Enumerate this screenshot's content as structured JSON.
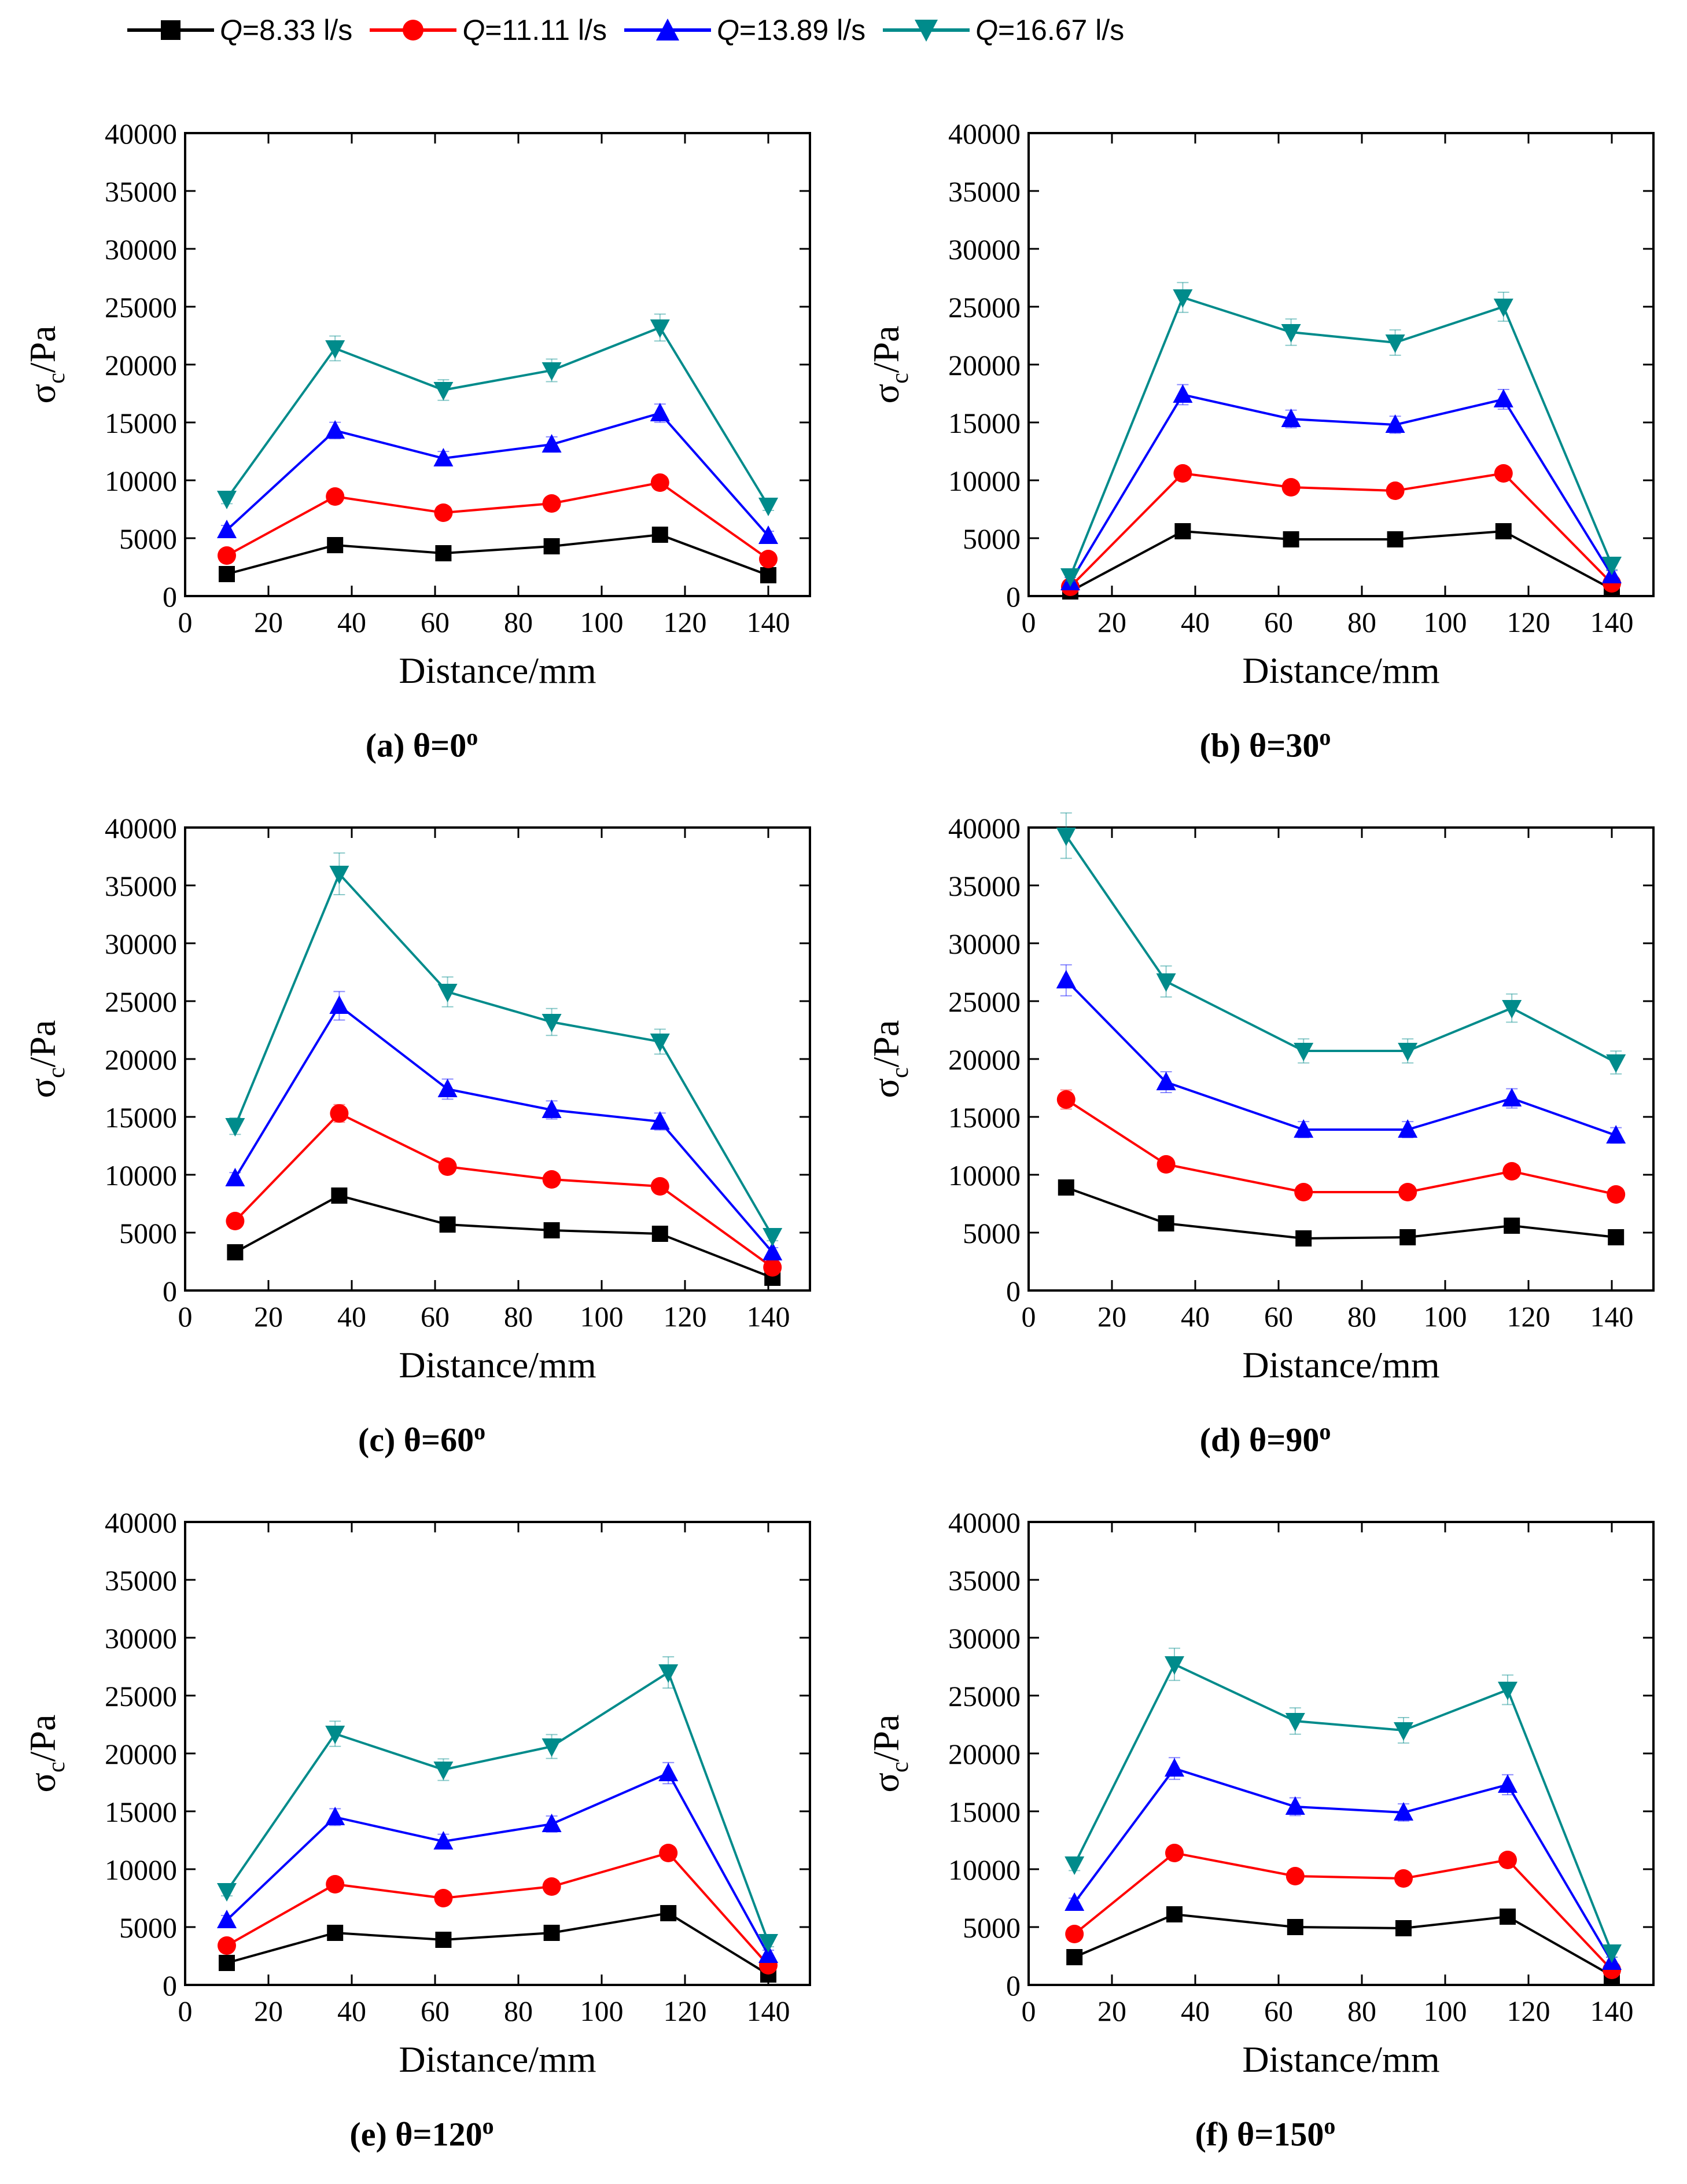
{
  "figure": {
    "legend": [
      {
        "q_symbol": "Q",
        "label": "=8.33 l/s",
        "color": "#000000",
        "marker": "square"
      },
      {
        "q_symbol": "Q",
        "label": "=11.11 l/s",
        "color": "#ff0000",
        "marker": "circle"
      },
      {
        "q_symbol": "Q",
        "label": "=13.89 l/s",
        "color": "#0000ff",
        "marker": "triangle-up"
      },
      {
        "q_symbol": "Q",
        "label": "=16.67 l/s",
        "color": "#008b8b",
        "marker": "triangle-down"
      }
    ],
    "panels": [
      {
        "caption": "(a) θ=0",
        "degree_sign": "o"
      },
      {
        "caption": "(b) θ=30",
        "degree_sign": "o"
      },
      {
        "caption": "(c) θ=60",
        "degree_sign": "o"
      },
      {
        "caption": "(d) θ=90",
        "degree_sign": "o"
      },
      {
        "caption": "(e) θ=120",
        "degree_sign": "o"
      },
      {
        "caption": "(f) θ=150",
        "degree_sign": "o"
      }
    ]
  },
  "chart_data": [
    {
      "type": "line",
      "title": "(a) θ=0°",
      "xlabel": "Distance/mm",
      "ylabel_main": "σ",
      "ylabel_sub": "c",
      "ylabel_rest": "/Pa",
      "xlim": [
        0,
        150
      ],
      "ylim": [
        0,
        40000
      ],
      "xticks": [
        0,
        20,
        40,
        60,
        80,
        100,
        120,
        140
      ],
      "yticks": [
        0,
        5000,
        10000,
        15000,
        20000,
        25000,
        30000,
        35000,
        40000
      ],
      "x": [
        10,
        36,
        62,
        88,
        114,
        140
      ],
      "series": [
        {
          "name": "Q=8.33 l/s",
          "values": [
            1900,
            4400,
            3700,
            4300,
            5300,
            1800
          ]
        },
        {
          "name": "Q=11.11 l/s",
          "values": [
            3500,
            8600,
            7200,
            8000,
            9800,
            3200
          ]
        },
        {
          "name": "Q=13.89 l/s",
          "values": [
            5700,
            14300,
            11900,
            13100,
            15800,
            5200
          ]
        },
        {
          "name": "Q=16.67 l/s",
          "values": [
            8400,
            21400,
            17800,
            19500,
            23200,
            7800
          ]
        }
      ]
    },
    {
      "type": "line",
      "title": "(b) θ=30°",
      "xlabel": "Distance/mm",
      "ylabel_main": "σ",
      "ylabel_sub": "c",
      "ylabel_rest": "/Pa",
      "xlim": [
        0,
        150
      ],
      "ylim": [
        0,
        40000
      ],
      "xticks": [
        0,
        20,
        40,
        60,
        80,
        100,
        120,
        140
      ],
      "yticks": [
        0,
        5000,
        10000,
        15000,
        20000,
        25000,
        30000,
        35000,
        40000
      ],
      "x": [
        10,
        37,
        63,
        88,
        114,
        140
      ],
      "series": [
        {
          "name": "Q=8.33 l/s",
          "values": [
            400,
            5600,
            4900,
            4900,
            5600,
            600
          ]
        },
        {
          "name": "Q=11.11 l/s",
          "values": [
            800,
            10600,
            9400,
            9100,
            10600,
            1100
          ]
        },
        {
          "name": "Q=13.89 l/s",
          "values": [
            1200,
            17400,
            15300,
            14800,
            17000,
            1800
          ]
        },
        {
          "name": "Q=16.67 l/s",
          "values": [
            1700,
            25800,
            22800,
            21900,
            25000,
            2700
          ]
        }
      ]
    },
    {
      "type": "line",
      "title": "(c) θ=60°",
      "xlabel": "Distance/mm",
      "ylabel_main": "σ",
      "ylabel_sub": "c",
      "ylabel_rest": "/Pa",
      "xlim": [
        0,
        150
      ],
      "ylim": [
        0,
        40000
      ],
      "xticks": [
        0,
        20,
        40,
        60,
        80,
        100,
        120,
        140
      ],
      "yticks": [
        0,
        5000,
        10000,
        15000,
        20000,
        25000,
        30000,
        35000,
        40000
      ],
      "x": [
        12,
        37,
        63,
        88,
        114,
        141
      ],
      "series": [
        {
          "name": "Q=8.33 l/s",
          "values": [
            3300,
            8200,
            5700,
            5200,
            4900,
            1100
          ]
        },
        {
          "name": "Q=11.11 l/s",
          "values": [
            6000,
            15300,
            10700,
            9600,
            9000,
            2000
          ]
        },
        {
          "name": "Q=13.89 l/s",
          "values": [
            9700,
            24600,
            17400,
            15600,
            14600,
            3300
          ]
        },
        {
          "name": "Q=16.67 l/s",
          "values": [
            14200,
            36000,
            25800,
            23200,
            21500,
            4700
          ]
        }
      ]
    },
    {
      "type": "line",
      "title": "(d) θ=90°",
      "xlabel": "Distance/mm",
      "ylabel_main": "σ",
      "ylabel_sub": "c",
      "ylabel_rest": "/Pa",
      "xlim": [
        0,
        150
      ],
      "ylim": [
        0,
        40000
      ],
      "xticks": [
        0,
        20,
        40,
        60,
        80,
        100,
        120,
        140
      ],
      "yticks": [
        0,
        5000,
        10000,
        15000,
        20000,
        25000,
        30000,
        35000,
        40000
      ],
      "x": [
        9,
        33,
        66,
        91,
        116,
        141
      ],
      "series": [
        {
          "name": "Q=8.33 l/s",
          "values": [
            8900,
            5800,
            4500,
            4600,
            5600,
            4600
          ]
        },
        {
          "name": "Q=11.11 l/s",
          "values": [
            16500,
            10900,
            8500,
            8500,
            10300,
            8300
          ]
        },
        {
          "name": "Q=13.89 l/s",
          "values": [
            26800,
            18000,
            13900,
            13900,
            16600,
            13400
          ]
        },
        {
          "name": "Q=16.67 l/s",
          "values": [
            39300,
            26700,
            20700,
            20700,
            24400,
            19700
          ]
        }
      ]
    },
    {
      "type": "line",
      "title": "(e) θ=120°",
      "xlabel": "Distance/mm",
      "ylabel_main": "σ",
      "ylabel_sub": "c",
      "ylabel_rest": "/Pa",
      "xlim": [
        0,
        150
      ],
      "ylim": [
        0,
        40000
      ],
      "xticks": [
        0,
        20,
        40,
        60,
        80,
        100,
        120,
        140
      ],
      "yticks": [
        0,
        5000,
        10000,
        15000,
        20000,
        25000,
        30000,
        35000,
        40000
      ],
      "x": [
        10,
        36,
        62,
        88,
        116,
        140
      ],
      "series": [
        {
          "name": "Q=8.33 l/s",
          "values": [
            1900,
            4500,
            3900,
            4500,
            6200,
            900
          ]
        },
        {
          "name": "Q=11.11 l/s",
          "values": [
            3400,
            8700,
            7500,
            8500,
            11400,
            1700
          ]
        },
        {
          "name": "Q=13.89 l/s",
          "values": [
            5600,
            14500,
            12400,
            13900,
            18300,
            2600
          ]
        },
        {
          "name": "Q=16.67 l/s",
          "values": [
            8100,
            21700,
            18600,
            20600,
            27000,
            3700
          ]
        }
      ]
    },
    {
      "type": "line",
      "title": "(f) θ=150°",
      "xlabel": "Distance/mm",
      "ylabel_main": "σ",
      "ylabel_sub": "c",
      "ylabel_rest": "/Pa",
      "xlim": [
        0,
        150
      ],
      "ylim": [
        0,
        40000
      ],
      "xticks": [
        0,
        20,
        40,
        60,
        80,
        100,
        120,
        140
      ],
      "yticks": [
        0,
        5000,
        10000,
        15000,
        20000,
        25000,
        30000,
        35000,
        40000
      ],
      "x": [
        11,
        35,
        64,
        90,
        115,
        140
      ],
      "series": [
        {
          "name": "Q=8.33 l/s",
          "values": [
            2400,
            6100,
            5000,
            4900,
            5900,
            800
          ]
        },
        {
          "name": "Q=11.11 l/s",
          "values": [
            4400,
            11400,
            9400,
            9200,
            10800,
            1300
          ]
        },
        {
          "name": "Q=13.89 l/s",
          "values": [
            7100,
            18700,
            15400,
            14900,
            17300,
            2000
          ]
        },
        {
          "name": "Q=16.67 l/s",
          "values": [
            10400,
            27700,
            22800,
            22000,
            25500,
            2800
          ]
        }
      ]
    }
  ]
}
